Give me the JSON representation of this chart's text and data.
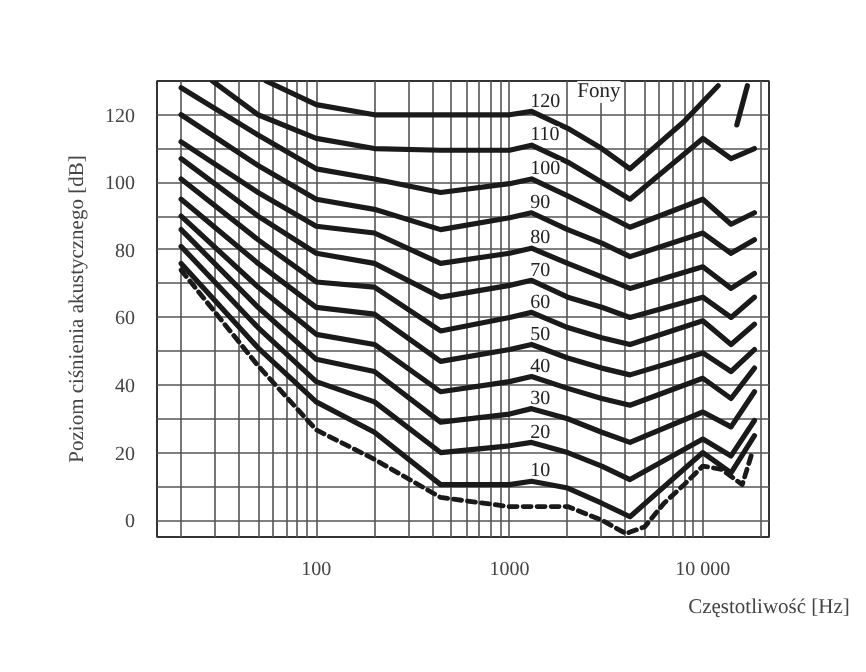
{
  "chart_data": {
    "type": "line",
    "xlabel": "Częstotliwość [Hz]",
    "ylabel": "Poziom ciśnienia akustycznego [dB]",
    "legend_title": "Fony",
    "log": "x",
    "grid": true,
    "marker": "none",
    "xlim": [
      15,
      22000
    ],
    "ylim": [
      -5,
      130
    ],
    "xticks": [
      {
        "value": 20,
        "label": null
      },
      {
        "value": 30,
        "label": null
      },
      {
        "value": 40,
        "label": null
      },
      {
        "value": 50,
        "label": null
      },
      {
        "value": 60,
        "label": null
      },
      {
        "value": 70,
        "label": null
      },
      {
        "value": 80,
        "label": null
      },
      {
        "value": 90,
        "label": null
      },
      100,
      {
        "value": 200,
        "label": null
      },
      {
        "value": 300,
        "label": null
      },
      {
        "value": 400,
        "label": null
      },
      {
        "value": 500,
        "label": null
      },
      {
        "value": 600,
        "label": null
      },
      {
        "value": 700,
        "label": null
      },
      {
        "value": 800,
        "label": null
      },
      {
        "value": 900,
        "label": null
      },
      1000,
      {
        "value": 2000,
        "label": null
      },
      {
        "value": 3000,
        "label": null
      },
      {
        "value": 4000,
        "label": null
      },
      {
        "value": 5000,
        "label": null
      },
      {
        "value": 6000,
        "label": null
      },
      {
        "value": 7000,
        "label": null
      },
      {
        "value": 8000,
        "label": null
      },
      {
        "value": 9000,
        "label": null
      },
      {
        "value": 10000,
        "label": "10 000"
      },
      {
        "value": 20000,
        "label": null
      }
    ],
    "yticks": [
      0,
      {
        "value": 10,
        "label": null
      },
      20,
      {
        "value": 30,
        "label": null
      },
      40,
      {
        "value": 50,
        "label": null
      },
      60,
      {
        "value": 70,
        "label": null
      },
      80,
      {
        "value": 90,
        "label": null
      },
      100,
      {
        "value": 110,
        "label": null
      },
      120
    ],
    "series": [
      {
        "color": "#1a1a1a",
        "line_style": "dashed",
        "x": [
          20,
          50,
          100,
          200,
          440,
          1000,
          2000,
          3000,
          4000,
          5000,
          6300,
          8000,
          10000,
          12500,
          16000,
          18000
        ],
        "values": [
          74,
          45.7,
          26.7,
          18,
          6.7,
          4,
          4,
          0,
          -4,
          -2,
          5,
          10.5,
          16,
          15,
          10.5,
          20
        ]
      },
      {
        "name": "10",
        "color": "#1a1a1a",
        "x": [
          20,
          50,
          100,
          200,
          440,
          1000,
          1300,
          2000,
          3000,
          4200,
          10000,
          14000,
          18500
        ],
        "values": [
          76,
          51,
          35,
          26,
          10.5,
          10.5,
          11.5,
          9.5,
          5,
          1,
          20,
          14,
          25
        ]
      },
      {
        "name": "20",
        "color": "#1a1a1a",
        "x": [
          20,
          50,
          100,
          200,
          440,
          1000,
          1300,
          2000,
          3000,
          4200,
          10000,
          14000,
          18500
        ],
        "values": [
          81,
          57,
          41,
          35,
          20,
          22,
          23,
          20,
          16,
          12,
          24,
          19,
          29.5
        ]
      },
      {
        "name": "30",
        "color": "#1a1a1a",
        "x": [
          20,
          50,
          100,
          200,
          440,
          1000,
          1300,
          2000,
          3000,
          4200,
          10000,
          14000,
          18500
        ],
        "values": [
          86,
          63,
          47.6,
          44,
          29,
          31.4,
          33,
          30,
          26,
          23,
          32,
          27.6,
          38
        ]
      },
      {
        "name": "40",
        "color": "#1a1a1a",
        "x": [
          20,
          50,
          100,
          200,
          440,
          1000,
          1300,
          2000,
          3000,
          4200,
          10000,
          14000,
          18500
        ],
        "values": [
          90,
          69,
          55,
          52,
          38,
          41,
          42.5,
          39,
          36,
          34,
          42,
          36,
          45
        ]
      },
      {
        "name": "50",
        "color": "#1a1a1a",
        "x": [
          20,
          50,
          100,
          200,
          440,
          1000,
          1300,
          2000,
          3000,
          4200,
          10000,
          14000,
          18500
        ],
        "values": [
          95,
          76,
          63,
          61,
          47,
          50.5,
          52,
          48,
          45,
          43,
          49.5,
          44,
          50.5
        ]
      },
      {
        "name": "60",
        "color": "#1a1a1a",
        "x": [
          20,
          50,
          100,
          200,
          440,
          1000,
          1300,
          2000,
          3000,
          4200,
          10000,
          14000,
          18500
        ],
        "values": [
          101,
          83,
          70.5,
          69,
          56,
          60,
          61.5,
          57,
          54,
          52,
          59,
          52,
          58
        ]
      },
      {
        "name": "70",
        "color": "#1a1a1a",
        "x": [
          20,
          50,
          100,
          200,
          440,
          1000,
          1300,
          2000,
          3000,
          4200,
          10000,
          14000,
          18500
        ],
        "values": [
          107,
          90,
          79,
          76,
          66,
          69.5,
          71,
          66,
          63,
          60,
          66,
          60,
          66
        ]
      },
      {
        "name": "80",
        "color": "#1a1a1a",
        "x": [
          20,
          50,
          100,
          200,
          440,
          1000,
          1300,
          2000,
          3000,
          4200,
          10000,
          14000,
          18500
        ],
        "values": [
          112,
          97,
          87,
          85,
          76,
          79,
          80.5,
          76,
          72,
          68.6,
          75,
          68.6,
          73
        ]
      },
      {
        "name": "90",
        "color": "#1a1a1a",
        "x": [
          20,
          50,
          100,
          200,
          440,
          1000,
          1300,
          2000,
          3000,
          4200,
          10000,
          14000,
          18500
        ],
        "values": [
          120,
          105,
          95,
          92,
          86,
          89.5,
          91,
          86,
          82,
          78,
          85,
          79,
          83
        ]
      },
      {
        "name": "100",
        "color": "#1a1a1a",
        "x": [
          20,
          50,
          100,
          200,
          440,
          1000,
          1300,
          2000,
          3000,
          4200,
          10000,
          14000,
          18500
        ],
        "values": [
          128,
          114,
          104,
          101,
          97,
          99.6,
          101,
          96,
          91,
          86.7,
          95,
          87.6,
          91
        ]
      },
      {
        "name": "110",
        "color": "#1a1a1a",
        "x": [
          29,
          50,
          100,
          200,
          440,
          1000,
          1300,
          2000,
          3000,
          4200,
          10000,
          14000,
          18500
        ],
        "values": [
          130,
          120,
          113,
          110,
          109.5,
          109.5,
          111,
          106,
          100,
          95,
          113,
          107,
          110
        ]
      },
      {
        "name": "120",
        "color": "#1a1a1a",
        "x": [
          55,
          100,
          200,
          440,
          1000,
          1300,
          2000,
          3000,
          4200,
          8000,
          12000,
          13500,
          15000,
          17000
        ],
        "values": [
          130,
          123,
          120,
          120,
          120,
          121,
          116,
          110,
          104,
          118,
          128.6,
          null,
          117,
          128.6
        ]
      }
    ]
  }
}
